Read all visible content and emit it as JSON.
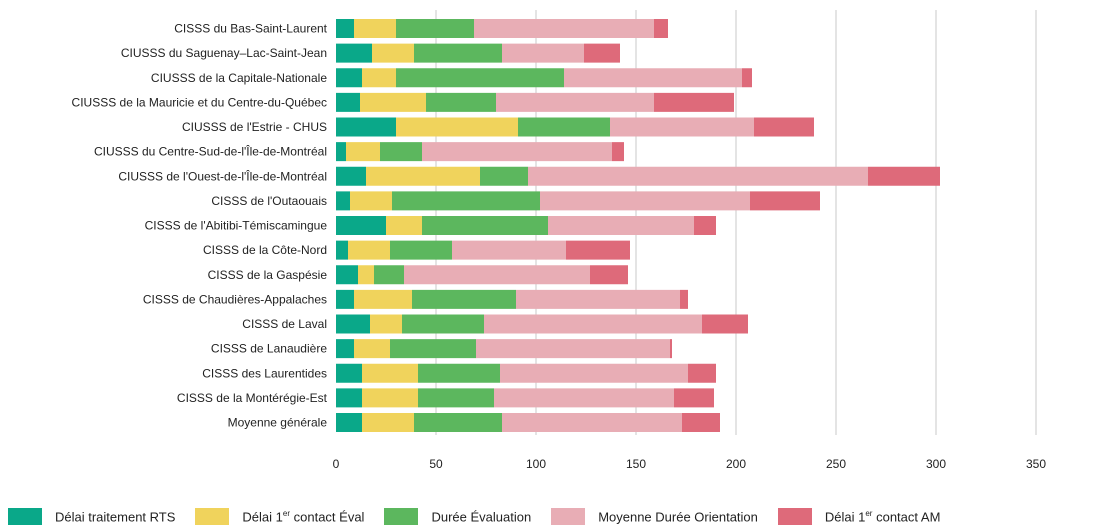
{
  "chart_data": {
    "type": "bar",
    "orientation": "horizontal",
    "stacked": true,
    "categories": [
      "CISSS du Bas-Saint-Laurent",
      "CIUSSS du Saguenay–Lac-Saint-Jean",
      "CIUSSS de la Capitale-Nationale",
      "CIUSSS de la Mauricie et du Centre-du-Québec",
      "CIUSSS de l'Estrie - CHUS",
      "CIUSSS du Centre-Sud-de-l'Île-de-Montréal",
      "CIUSSS de l'Ouest-de-l'Île-de-Montréal",
      "CISSS de l'Outaouais",
      "CISSS de l'Abitibi-Témiscamingue",
      "CISSS de la Côte-Nord",
      "CISSS de la Gaspésie",
      "CISSS de Chaudières-Appalaches",
      "CISSS de Laval",
      "CISSS de Lanaudière",
      "CISSS des Laurentides",
      "CISSS de la Montérégie-Est",
      "Moyenne générale"
    ],
    "series": [
      {
        "name": "Délai traitement RTS",
        "color": "#0aa889",
        "values": [
          9,
          18,
          13,
          12,
          30,
          5,
          15,
          7,
          25,
          6,
          11,
          9,
          17,
          9,
          13,
          13,
          13
        ]
      },
      {
        "name": "Délai 1er contact Éval",
        "color": "#f0d35c",
        "values": [
          21,
          21,
          17,
          33,
          61,
          17,
          57,
          21,
          18,
          21,
          8,
          29,
          16,
          18,
          28,
          28,
          26
        ]
      },
      {
        "name": "Durée Évaluation",
        "color": "#5cb75e",
        "values": [
          39,
          44,
          84,
          35,
          46,
          21,
          24,
          74,
          63,
          31,
          15,
          52,
          41,
          43,
          41,
          38,
          44
        ]
      },
      {
        "name": "Moyenne Durée Orientation",
        "color": "#e8adb5",
        "values": [
          90,
          41,
          89,
          79,
          72,
          95,
          170,
          105,
          73,
          57,
          93,
          82,
          109,
          97,
          94,
          90,
          90
        ]
      },
      {
        "name": "Délai 1er contact AM",
        "color": "#de6a7a",
        "values": [
          7,
          18,
          5,
          40,
          30,
          6,
          36,
          35,
          11,
          32,
          19,
          4,
          23,
          1,
          14,
          20,
          19
        ]
      }
    ],
    "xticks": [
      0,
      50,
      100,
      150,
      200,
      250,
      300,
      350
    ],
    "xlim": [
      0,
      350
    ],
    "xlabel": "",
    "ylabel": "",
    "title": "",
    "grid": "vertical",
    "legend_position": "bottom"
  },
  "legend": [
    {
      "base": "Délai traitement RTS",
      "sup": "",
      "rest": ""
    },
    {
      "base": "Délai 1",
      "sup": "er",
      "rest": " contact Éval"
    },
    {
      "base": "Durée Évaluation",
      "sup": "",
      "rest": ""
    },
    {
      "base": "Moyenne Durée Orientation",
      "sup": "",
      "rest": ""
    },
    {
      "base": "Délai 1",
      "sup": "er",
      "rest": " contact AM"
    }
  ]
}
